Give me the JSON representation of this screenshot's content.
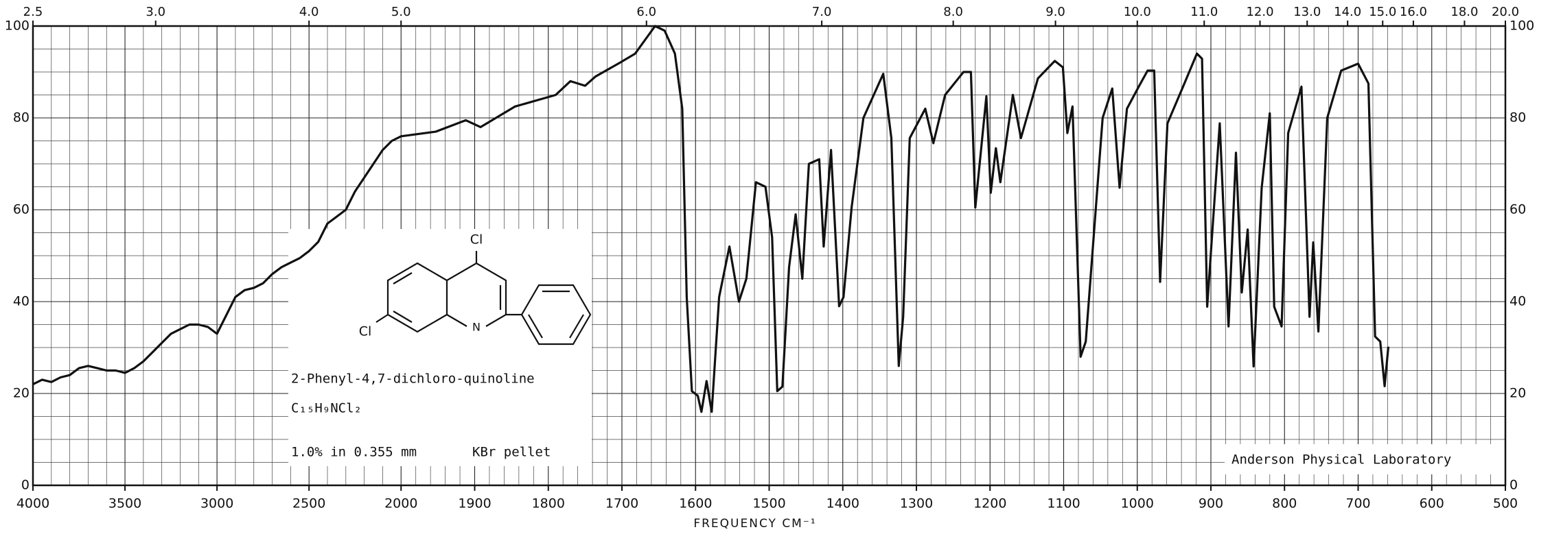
{
  "chart_data": {
    "type": "line",
    "xlabel": "FREQUENCY CM⁻¹",
    "xlim": [
      4000,
      500
    ],
    "xscale_break": 2000,
    "xticks": [
      4000,
      3500,
      3000,
      2500,
      2000,
      1900,
      1800,
      1700,
      1600,
      1500,
      1400,
      1300,
      1200,
      1100,
      1000,
      900,
      800,
      700,
      600,
      500
    ],
    "x2ticks": [
      2.5,
      {
        "value": 3,
        "label": "3.0"
      },
      {
        "value": 4,
        "label": "4.0"
      },
      {
        "value": 5,
        "label": "5.0"
      },
      {
        "value": 6,
        "label": "6.0"
      },
      {
        "value": 7,
        "label": "7.0"
      },
      {
        "value": 8,
        "label": "8.0"
      },
      {
        "value": 9,
        "label": "9.0"
      },
      {
        "value": 10,
        "label": "10.0"
      },
      {
        "value": 11,
        "label": "11.0"
      },
      {
        "value": 12,
        "label": "12.0"
      },
      {
        "value": 13,
        "label": "13.0"
      },
      {
        "value": 14,
        "label": "14.0"
      },
      {
        "value": 15,
        "label": "15.0"
      },
      {
        "value": 16,
        "label": "16.0"
      },
      {
        "value": 18,
        "label": "18.0"
      },
      {
        "value": 20,
        "label": "20.0"
      }
    ],
    "ylim": [
      0,
      100
    ],
    "yticks": [
      0,
      20,
      40,
      60,
      80,
      100
    ],
    "grid": true,
    "color": "#111111",
    "x": [
      4000,
      3950,
      3900,
      3850,
      3800,
      3750,
      3700,
      3650,
      3600,
      3550,
      3500,
      3450,
      3400,
      3350,
      3300,
      3250,
      3200,
      3150,
      3100,
      3050,
      3000,
      2950,
      2900,
      2850,
      2800,
      2750,
      2700,
      2650,
      2600,
      2550,
      2500,
      2450,
      2400,
      2350,
      2300,
      2250,
      2200,
      2150,
      2100,
      2050,
      2000,
      1953,
      1912,
      1892,
      1845,
      1790,
      1770,
      1750,
      1736,
      1703,
      1682,
      1655,
      1642,
      1628,
      1618,
      1612,
      1605,
      1597,
      1592,
      1585,
      1578,
      1568,
      1554,
      1541,
      1531,
      1518,
      1505,
      1496,
      1489,
      1482,
      1473,
      1464,
      1455,
      1446,
      1432,
      1426,
      1416,
      1405,
      1399,
      1388,
      1372,
      1345,
      1334,
      1324,
      1318,
      1309,
      1288,
      1277,
      1261,
      1236,
      1226,
      1220,
      1212,
      1205,
      1199,
      1192,
      1186,
      1169,
      1158,
      1135,
      1112,
      1101,
      1095,
      1088,
      1077,
      1070,
      1047,
      1034,
      1024,
      1014,
      998,
      986,
      977,
      969,
      959,
      936,
      919,
      912,
      905,
      888,
      876,
      866,
      858,
      850,
      842,
      831,
      820,
      814,
      804,
      795,
      777,
      766,
      761,
      754,
      742,
      723,
      700,
      686,
      677,
      670,
      664,
      659
    ],
    "values": [
      22,
      23,
      22.5,
      23.5,
      24,
      25.5,
      26,
      25.5,
      25,
      25,
      24.5,
      25.5,
      27,
      29,
      31,
      33,
      34,
      35,
      35,
      34.5,
      33,
      37,
      41,
      42.5,
      43,
      44,
      46,
      47.5,
      48.5,
      49.5,
      51,
      53,
      57,
      58.5,
      60,
      64,
      67,
      70,
      73,
      75,
      76,
      77,
      79.5,
      78,
      82.5,
      85,
      88,
      87,
      89,
      92,
      94,
      100,
      99,
      94,
      82,
      41,
      20.5,
      19.5,
      16,
      22.7,
      16,
      41,
      52,
      40,
      45,
      66,
      65,
      54,
      20.5,
      21.5,
      47.5,
      59,
      45,
      70,
      71,
      52,
      73,
      39,
      41,
      60.5,
      80,
      89.6,
      75.6,
      26,
      36.7,
      75.6,
      82,
      74.5,
      85,
      90,
      90,
      60.5,
      73.4,
      84.7,
      63.7,
      73.4,
      66,
      85,
      75.6,
      88.6,
      92.4,
      91,
      76.7,
      82.5,
      28,
      31.3,
      80,
      86.4,
      64.8,
      82,
      86.8,
      90.3,
      90.3,
      44.3,
      78.8,
      87.5,
      94,
      92.9,
      38.9,
      78.8,
      34.6,
      72.4,
      42,
      55.7,
      25.9,
      64.8,
      81,
      38.9,
      34.6,
      76.7,
      86.8,
      36.7,
      52.9,
      33.5,
      80,
      90.3,
      91.8,
      87.5,
      32.4,
      31.3,
      21.6,
      30.2
    ],
    "annotations": {
      "compound": "2-Phenyl-4,7-dichloro-quinoline",
      "formula": "C₁₅H₉NCl₂",
      "sample": "1.0% in 0.355 mm",
      "medium": "KBr pellet",
      "lab": "Anderson Physical Laboratory"
    },
    "structure": {
      "atoms": [
        "Cl",
        "Cl",
        "N"
      ]
    }
  }
}
